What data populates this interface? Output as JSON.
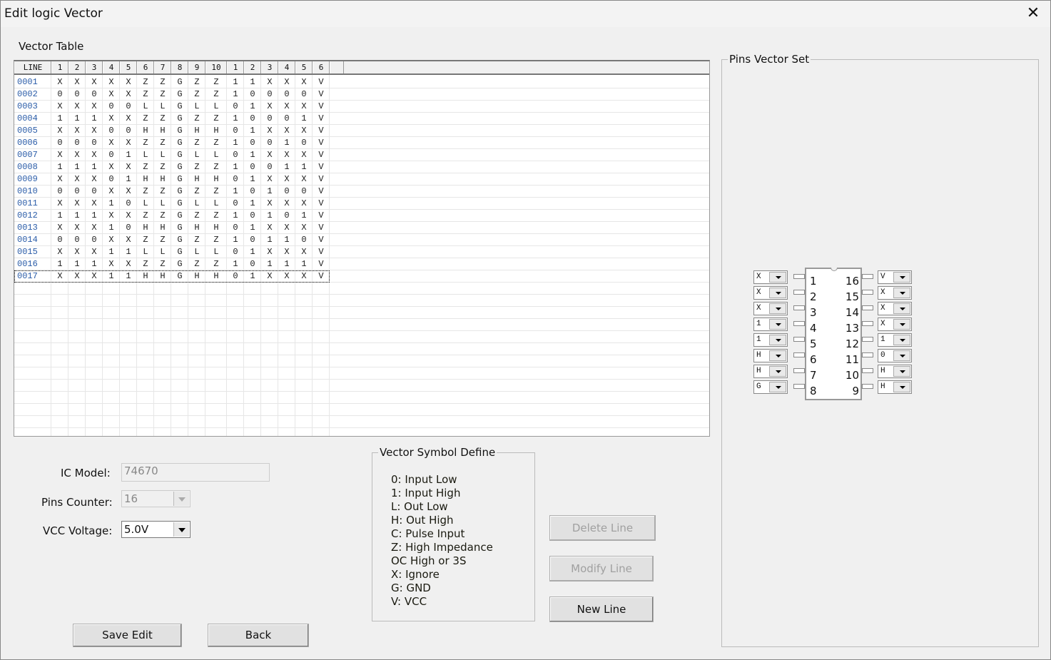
{
  "window": {
    "title": "Edit logic Vector",
    "close_icon": "close-icon"
  },
  "vector_table": {
    "label": "Vector Table",
    "columns": [
      "LINE",
      "1",
      "2",
      "3",
      "4",
      "5",
      "6",
      "7",
      "8",
      "9",
      "10",
      "1",
      "2",
      "3",
      "4",
      "5",
      "6"
    ],
    "rows": [
      [
        "0001",
        "X",
        "X",
        "X",
        "X",
        "X",
        "Z",
        "Z",
        "G",
        "Z",
        "Z",
        "1",
        "1",
        "X",
        "X",
        "X",
        "V"
      ],
      [
        "0002",
        "0",
        "0",
        "0",
        "X",
        "X",
        "Z",
        "Z",
        "G",
        "Z",
        "Z",
        "1",
        "0",
        "0",
        "0",
        "0",
        "V"
      ],
      [
        "0003",
        "X",
        "X",
        "X",
        "0",
        "0",
        "L",
        "L",
        "G",
        "L",
        "L",
        "0",
        "1",
        "X",
        "X",
        "X",
        "V"
      ],
      [
        "0004",
        "1",
        "1",
        "1",
        "X",
        "X",
        "Z",
        "Z",
        "G",
        "Z",
        "Z",
        "1",
        "0",
        "0",
        "0",
        "1",
        "V"
      ],
      [
        "0005",
        "X",
        "X",
        "X",
        "0",
        "0",
        "H",
        "H",
        "G",
        "H",
        "H",
        "0",
        "1",
        "X",
        "X",
        "X",
        "V"
      ],
      [
        "0006",
        "0",
        "0",
        "0",
        "X",
        "X",
        "Z",
        "Z",
        "G",
        "Z",
        "Z",
        "1",
        "0",
        "0",
        "1",
        "0",
        "V"
      ],
      [
        "0007",
        "X",
        "X",
        "X",
        "0",
        "1",
        "L",
        "L",
        "G",
        "L",
        "L",
        "0",
        "1",
        "X",
        "X",
        "X",
        "V"
      ],
      [
        "0008",
        "1",
        "1",
        "1",
        "X",
        "X",
        "Z",
        "Z",
        "G",
        "Z",
        "Z",
        "1",
        "0",
        "0",
        "1",
        "1",
        "V"
      ],
      [
        "0009",
        "X",
        "X",
        "X",
        "0",
        "1",
        "H",
        "H",
        "G",
        "H",
        "H",
        "0",
        "1",
        "X",
        "X",
        "X",
        "V"
      ],
      [
        "0010",
        "0",
        "0",
        "0",
        "X",
        "X",
        "Z",
        "Z",
        "G",
        "Z",
        "Z",
        "1",
        "0",
        "1",
        "0",
        "0",
        "V"
      ],
      [
        "0011",
        "X",
        "X",
        "X",
        "1",
        "0",
        "L",
        "L",
        "G",
        "L",
        "L",
        "0",
        "1",
        "X",
        "X",
        "X",
        "V"
      ],
      [
        "0012",
        "1",
        "1",
        "1",
        "X",
        "X",
        "Z",
        "Z",
        "G",
        "Z",
        "Z",
        "1",
        "0",
        "1",
        "0",
        "1",
        "V"
      ],
      [
        "0013",
        "X",
        "X",
        "X",
        "1",
        "0",
        "H",
        "H",
        "G",
        "H",
        "H",
        "0",
        "1",
        "X",
        "X",
        "X",
        "V"
      ],
      [
        "0014",
        "0",
        "0",
        "0",
        "X",
        "X",
        "Z",
        "Z",
        "G",
        "Z",
        "Z",
        "1",
        "0",
        "1",
        "1",
        "0",
        "V"
      ],
      [
        "0015",
        "X",
        "X",
        "X",
        "1",
        "1",
        "L",
        "L",
        "G",
        "L",
        "L",
        "0",
        "1",
        "X",
        "X",
        "X",
        "V"
      ],
      [
        "0016",
        "1",
        "1",
        "1",
        "X",
        "X",
        "Z",
        "Z",
        "G",
        "Z",
        "Z",
        "1",
        "0",
        "1",
        "1",
        "1",
        "V"
      ],
      [
        "0017",
        "X",
        "X",
        "X",
        "1",
        "1",
        "H",
        "H",
        "G",
        "H",
        "H",
        "0",
        "1",
        "X",
        "X",
        "X",
        "V"
      ]
    ],
    "selected_row": "0017"
  },
  "form": {
    "ic_model_label": "IC Model:",
    "ic_model_value": "74670",
    "pins_counter_label": "Pins Counter:",
    "pins_counter_value": "16",
    "vcc_label": "VCC Voltage:",
    "vcc_value": "5.0V"
  },
  "symbols": {
    "title": "Vector Symbol Define",
    "items": [
      "0: Input Low",
      "1: Input High",
      "L: Out Low",
      "H: Out High",
      "C: Pulse Input",
      "Z: High Impedance",
      " OC High or 3S",
      "X: Ignore",
      "G: GND",
      "V: VCC"
    ]
  },
  "buttons": {
    "delete": "Delete Line",
    "modify": "Modify Line",
    "new": "New Line",
    "save": "Save Edit",
    "back": "Back"
  },
  "pins_vector_set": {
    "title": "Pins Vector Set",
    "left": [
      {
        "num": "1",
        "value": "X"
      },
      {
        "num": "2",
        "value": "X"
      },
      {
        "num": "3",
        "value": "X"
      },
      {
        "num": "4",
        "value": "1"
      },
      {
        "num": "5",
        "value": "1"
      },
      {
        "num": "6",
        "value": "H"
      },
      {
        "num": "7",
        "value": "H"
      },
      {
        "num": "8",
        "value": "G"
      }
    ],
    "right": [
      {
        "num": "16",
        "value": "V"
      },
      {
        "num": "15",
        "value": "X"
      },
      {
        "num": "14",
        "value": "X"
      },
      {
        "num": "13",
        "value": "X"
      },
      {
        "num": "12",
        "value": "1"
      },
      {
        "num": "11",
        "value": "0"
      },
      {
        "num": "10",
        "value": "H"
      },
      {
        "num": "9",
        "value": "H"
      }
    ]
  }
}
